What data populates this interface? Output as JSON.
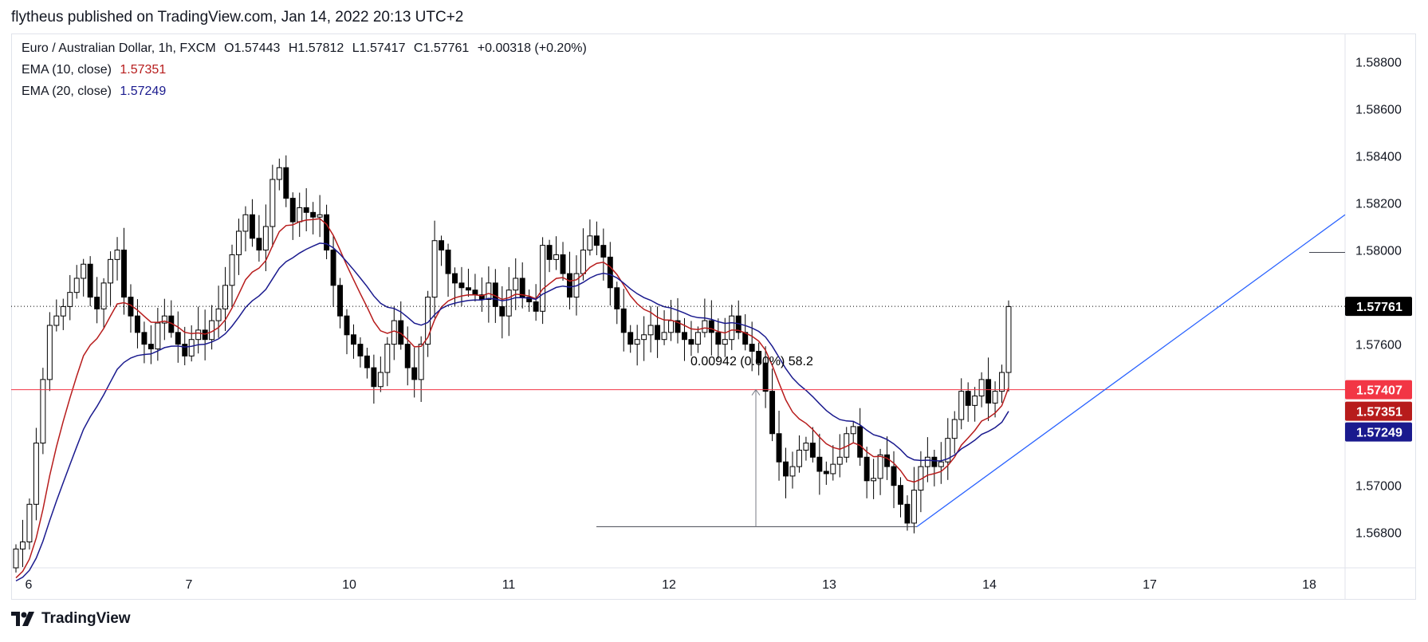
{
  "header": {
    "published": "flytheus published on TradingView.com, Jan 14, 2022 20:13 UTC+2"
  },
  "legend": {
    "symbol": "Euro / Australian Dollar, 1h, FXCM",
    "open_label": "O",
    "open": "1.57443",
    "high_label": "H",
    "high": "1.57812",
    "low_label": "L",
    "low": "1.57417",
    "close_label": "C",
    "close": "1.57761",
    "change": "+0.00318 (+0.20%)",
    "ema10_label": "EMA (10, close)",
    "ema10_value": "1.57351",
    "ema20_label": "EMA (20, close)",
    "ema20_value": "1.57249"
  },
  "annotation": {
    "measure_text": "0.00942 (0.60%) 58.2"
  },
  "footer": {
    "brand": "TradingView",
    "logo_icon": "tradingview-logo-icon"
  },
  "colors": {
    "up": "#ffffff",
    "down": "#000000",
    "ema10": "#b71c1c",
    "ema20": "#1a1a8e",
    "support": "#f23645",
    "trend": "#2962ff",
    "last": "#000000"
  },
  "chart_data": {
    "type": "candlestick",
    "x_ticks": [
      "6",
      "7",
      "10",
      "11",
      "12",
      "13",
      "14",
      "17",
      "18"
    ],
    "y_ticks": [
      "1.58800",
      "1.58600",
      "1.58400",
      "1.58200",
      "1.58000",
      "1.57600",
      "1.57000",
      "1.56800"
    ],
    "ylim": [
      1.5665,
      1.5892
    ],
    "price_labels": [
      {
        "name": "last-price",
        "value": "1.57761",
        "color": "#000000"
      },
      {
        "name": "support-level",
        "value": "1.57407",
        "color": "#f23645"
      },
      {
        "name": "ema10",
        "value": "1.57351",
        "color": "#b71c1c"
      },
      {
        "name": "ema20",
        "value": "1.57249",
        "color": "#1a1a8e"
      }
    ],
    "levels": {
      "last": 1.57761,
      "support": 1.57407,
      "low_mark": 1.56825
    },
    "close_path": [
      1.5673,
      1.5676,
      1.5692,
      1.5718,
      1.5745,
      1.5768,
      1.5772,
      1.5776,
      1.5782,
      1.5788,
      1.5794,
      1.578,
      1.5775,
      1.5786,
      1.5796,
      1.58,
      1.578,
      1.5772,
      1.5765,
      1.576,
      1.5758,
      1.5769,
      1.5772,
      1.5765,
      1.576,
      1.5755,
      1.5762,
      1.5766,
      1.5762,
      1.577,
      1.5775,
      1.5785,
      1.5798,
      1.5808,
      1.5815,
      1.5805,
      1.58,
      1.581,
      1.583,
      1.5835,
      1.5822,
      1.5812,
      1.5818,
      1.5816,
      1.5814,
      1.5815,
      1.58,
      1.5785,
      1.5772,
      1.5764,
      1.576,
      1.5755,
      1.575,
      1.5742,
      1.5748,
      1.576,
      1.577,
      1.576,
      1.575,
      1.5745,
      1.576,
      1.578,
      1.5804,
      1.58,
      1.579,
      1.5786,
      1.5784,
      1.5783,
      1.5781,
      1.5779,
      1.5786,
      1.5776,
      1.5772,
      1.5783,
      1.5788,
      1.578,
      1.5778,
      1.5774,
      1.5802,
      1.5796,
      1.5798,
      1.579,
      1.578,
      1.579,
      1.58,
      1.5806,
      1.5802,
      1.5797,
      1.5784,
      1.5775,
      1.5765,
      1.576,
      1.5762,
      1.5764,
      1.5768,
      1.5762,
      1.5765,
      1.577,
      1.5765,
      1.5762,
      1.576,
      1.5765,
      1.577,
      1.5765,
      1.576,
      1.5762,
      1.5772,
      1.5765,
      1.576,
      1.5757,
      1.5752,
      1.574,
      1.5722,
      1.571,
      1.5704,
      1.5708,
      1.5715,
      1.5718,
      1.5712,
      1.5706,
      1.5705,
      1.5709,
      1.5712,
      1.5722,
      1.5725,
      1.5712,
      1.5702,
      1.5703,
      1.5713,
      1.5708,
      1.57,
      1.5692,
      1.5684,
      1.5698,
      1.5708,
      1.5712,
      1.5708,
      1.571,
      1.572,
      1.5728,
      1.574,
      1.5734,
      1.5738,
      1.5745,
      1.5735,
      1.574,
      1.5748,
      1.5776
    ]
  }
}
